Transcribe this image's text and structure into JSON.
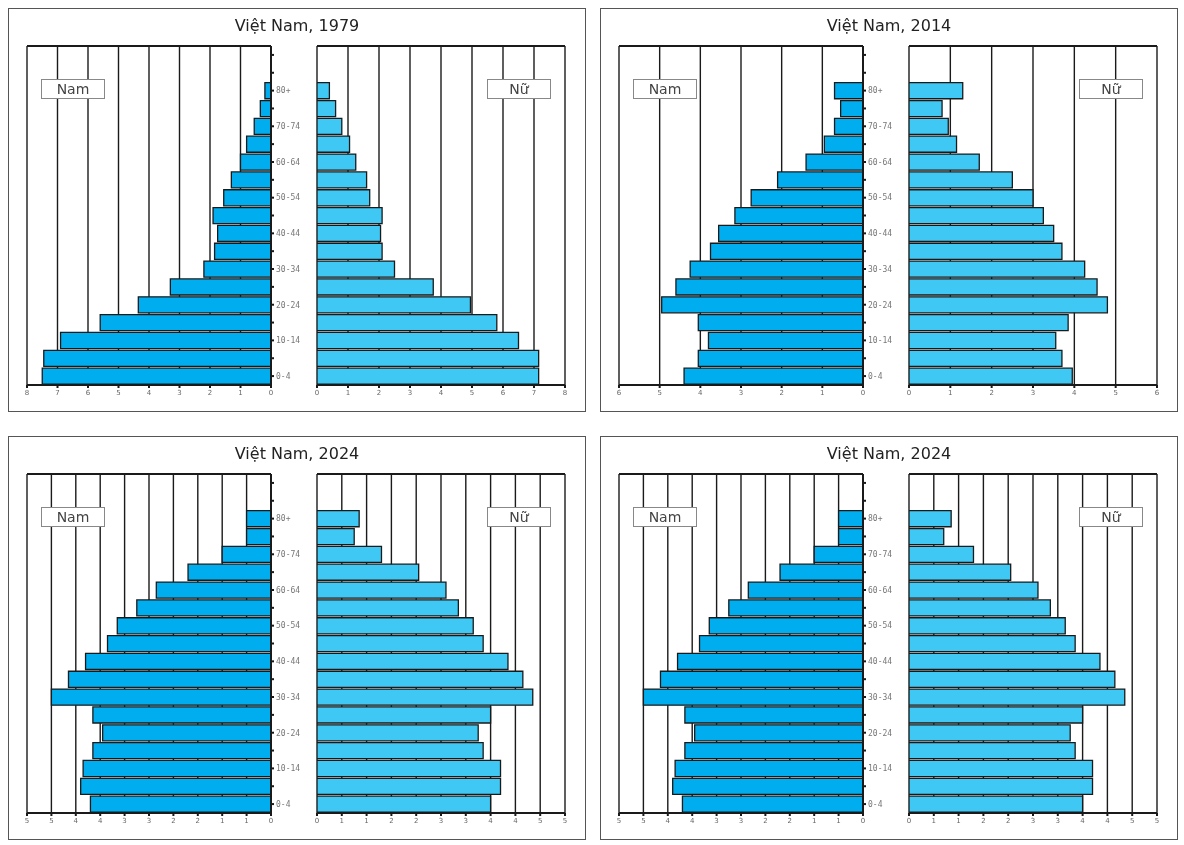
{
  "chart_data": [
    {
      "type": "bar",
      "orientation": "horizontal",
      "title": "Việt Nam, 1979",
      "annotations": [
        "Nam"
      ],
      "categories": [
        null,
        null,
        "80+",
        null,
        "70-74",
        null,
        "60-64",
        null,
        "50-54",
        null,
        "40-44",
        null,
        "30-34",
        null,
        "20-24",
        null,
        "10-14",
        null,
        "0-4"
      ],
      "values": [
        null,
        null,
        0.2,
        0.35,
        0.55,
        0.8,
        1.0,
        1.3,
        1.55,
        1.9,
        1.75,
        1.85,
        2.2,
        3.3,
        4.35,
        5.6,
        6.9,
        7.45,
        7.5
      ],
      "color": "#00aeef",
      "xlim": [
        8,
        0
      ],
      "xticks": [
        8,
        7,
        6,
        5,
        4,
        3,
        2,
        1,
        0
      ],
      "grid": "x"
    },
    {
      "type": "bar",
      "orientation": "horizontal",
      "annotations": [
        "Nữ"
      ],
      "categories": [
        null,
        null,
        null,
        null,
        null,
        null,
        null,
        null,
        null,
        null,
        null,
        null,
        null,
        null,
        null,
        null,
        null,
        null,
        null
      ],
      "values": [
        null,
        null,
        0.4,
        0.6,
        0.8,
        1.05,
        1.25,
        1.6,
        1.7,
        2.1,
        2.05,
        2.1,
        2.5,
        3.75,
        4.95,
        5.8,
        6.5,
        7.15,
        7.15
      ],
      "color": "#40c8f4",
      "xlim": [
        0,
        8
      ],
      "xticks": [
        0,
        1,
        2,
        3,
        4,
        5,
        6,
        7,
        8
      ],
      "grid": "x",
      "tick_labels": "x"
    },
    {
      "type": "bar",
      "orientation": "horizontal",
      "title": "Việt Nam, 2014",
      "annotations": [
        "Nam"
      ],
      "categories": [
        null,
        null,
        "80+",
        null,
        "70-74",
        null,
        "60-64",
        null,
        "50-54",
        null,
        "40-44",
        null,
        "30-34",
        null,
        "20-24",
        null,
        "10-14",
        null,
        "0-4"
      ],
      "values": [
        null,
        null,
        0.7,
        0.55,
        0.7,
        0.95,
        1.4,
        2.1,
        2.75,
        3.15,
        3.55,
        3.75,
        4.25,
        4.6,
        4.95,
        4.05,
        3.8,
        4.05,
        4.4
      ],
      "color": "#00aeef",
      "xlim": [
        6,
        0
      ],
      "xticks": [
        6,
        5,
        4,
        3,
        2,
        1,
        0
      ],
      "grid": "x"
    },
    {
      "type": "bar",
      "orientation": "horizontal",
      "annotations": [
        "Nữ"
      ],
      "categories": [
        null,
        null,
        null,
        null,
        null,
        null,
        null,
        null,
        null,
        null,
        null,
        null,
        null,
        null,
        null,
        null,
        null,
        null,
        null
      ],
      "values": [
        null,
        null,
        1.3,
        0.8,
        0.95,
        1.15,
        1.7,
        2.5,
        3.0,
        3.25,
        3.5,
        3.7,
        4.25,
        4.55,
        4.8,
        3.85,
        3.55,
        3.7,
        3.95
      ],
      "color": "#40c8f4",
      "xlim": [
        0,
        6
      ],
      "xticks": [
        0,
        1,
        2,
        3,
        4,
        5,
        6
      ],
      "grid": "x",
      "tick_labels": "x"
    },
    {
      "type": "bar",
      "orientation": "horizontal",
      "title": "Việt Nam, 2024",
      "annotations": [
        "Nam"
      ],
      "categories": [
        null,
        null,
        "80+",
        null,
        "70-74",
        null,
        "60-64",
        null,
        "50-54",
        null,
        "40-44",
        null,
        "30-34",
        null,
        "20-24",
        null,
        "10-14",
        null,
        "0-4"
      ],
      "values": [
        null,
        null,
        0.5,
        0.5,
        1.0,
        1.7,
        2.35,
        2.75,
        3.15,
        3.35,
        3.8,
        4.15,
        4.5,
        3.65,
        3.45,
        3.65,
        3.85,
        3.9,
        3.7
      ],
      "color": "#00aeef",
      "xlim": [
        5,
        0
      ],
      "xticks": [
        5,
        {
          "value": 4.5,
          "label": "5"
        },
        4,
        {
          "value": 3.5,
          "label": "4"
        },
        3,
        {
          "value": 2.5,
          "label": "3"
        },
        2,
        {
          "value": 1.5,
          "label": "2"
        },
        1,
        {
          "value": 0.5,
          "label": "1"
        },
        0
      ],
      "grid": "x"
    },
    {
      "type": "bar",
      "orientation": "horizontal",
      "annotations": [
        "Nữ"
      ],
      "categories": [
        null,
        null,
        null,
        null,
        null,
        null,
        null,
        null,
        null,
        null,
        null,
        null,
        null,
        null,
        null,
        null,
        null,
        null,
        null
      ],
      "values": [
        null,
        null,
        0.85,
        0.75,
        1.3,
        2.05,
        2.6,
        2.85,
        3.15,
        3.35,
        3.85,
        4.15,
        4.35,
        3.5,
        3.25,
        3.35,
        3.7,
        3.7,
        3.5
      ],
      "color": "#40c8f4",
      "xlim": [
        0,
        5
      ],
      "xticks": [
        0,
        {
          "value": 0.5,
          "label": "1"
        },
        1,
        {
          "value": 1.5,
          "label": "2"
        },
        2,
        {
          "value": 2.5,
          "label": "3"
        },
        3,
        {
          "value": 3.5,
          "label": "4"
        },
        4,
        {
          "value": 4.5,
          "label": "5"
        },
        5
      ],
      "grid": "x",
      "tick_labels": "x"
    },
    {
      "type": "bar",
      "orientation": "horizontal",
      "title": "Việt Nam, 2024",
      "annotations": [
        "Nam"
      ],
      "categories": [
        null,
        null,
        "80+",
        null,
        "70-74",
        null,
        "60-64",
        null,
        "50-54",
        null,
        "40-44",
        null,
        "30-34",
        null,
        "20-24",
        null,
        "10-14",
        null,
        "0-4"
      ],
      "values": [
        null,
        null,
        0.5,
        0.5,
        1.0,
        1.7,
        2.35,
        2.75,
        3.15,
        3.35,
        3.8,
        4.15,
        4.5,
        3.65,
        3.45,
        3.65,
        3.85,
        3.9,
        3.7
      ],
      "color": "#00aeef",
      "xlim": [
        5,
        0
      ],
      "xticks": [
        5,
        {
          "value": 4.5,
          "label": "5"
        },
        4,
        {
          "value": 3.5,
          "label": "4"
        },
        3,
        {
          "value": 2.5,
          "label": "3"
        },
        2,
        {
          "value": 1.5,
          "label": "2"
        },
        1,
        {
          "value": 0.5,
          "label": "1"
        },
        0
      ],
      "grid": "x"
    },
    {
      "type": "bar",
      "orientation": "horizontal",
      "annotations": [
        "Nữ"
      ],
      "categories": [
        null,
        null,
        null,
        null,
        null,
        null,
        null,
        null,
        null,
        null,
        null,
        null,
        null,
        null,
        null,
        null,
        null,
        null,
        null
      ],
      "values": [
        null,
        null,
        0.85,
        0.7,
        1.3,
        2.05,
        2.6,
        2.85,
        3.15,
        3.35,
        3.85,
        4.15,
        4.35,
        3.5,
        3.25,
        3.35,
        3.7,
        3.7,
        3.5
      ],
      "color": "#40c8f4",
      "xlim": [
        0,
        5
      ],
      "xticks": [
        0,
        {
          "value": 0.5,
          "label": "1"
        },
        1,
        {
          "value": 1.5,
          "label": "2"
        },
        2,
        {
          "value": 2.5,
          "label": "3"
        },
        3,
        {
          "value": 3.5,
          "label": "4"
        },
        4,
        {
          "value": 4.5,
          "label": "5"
        },
        5
      ],
      "grid": "x",
      "tick_labels": "x"
    }
  ]
}
